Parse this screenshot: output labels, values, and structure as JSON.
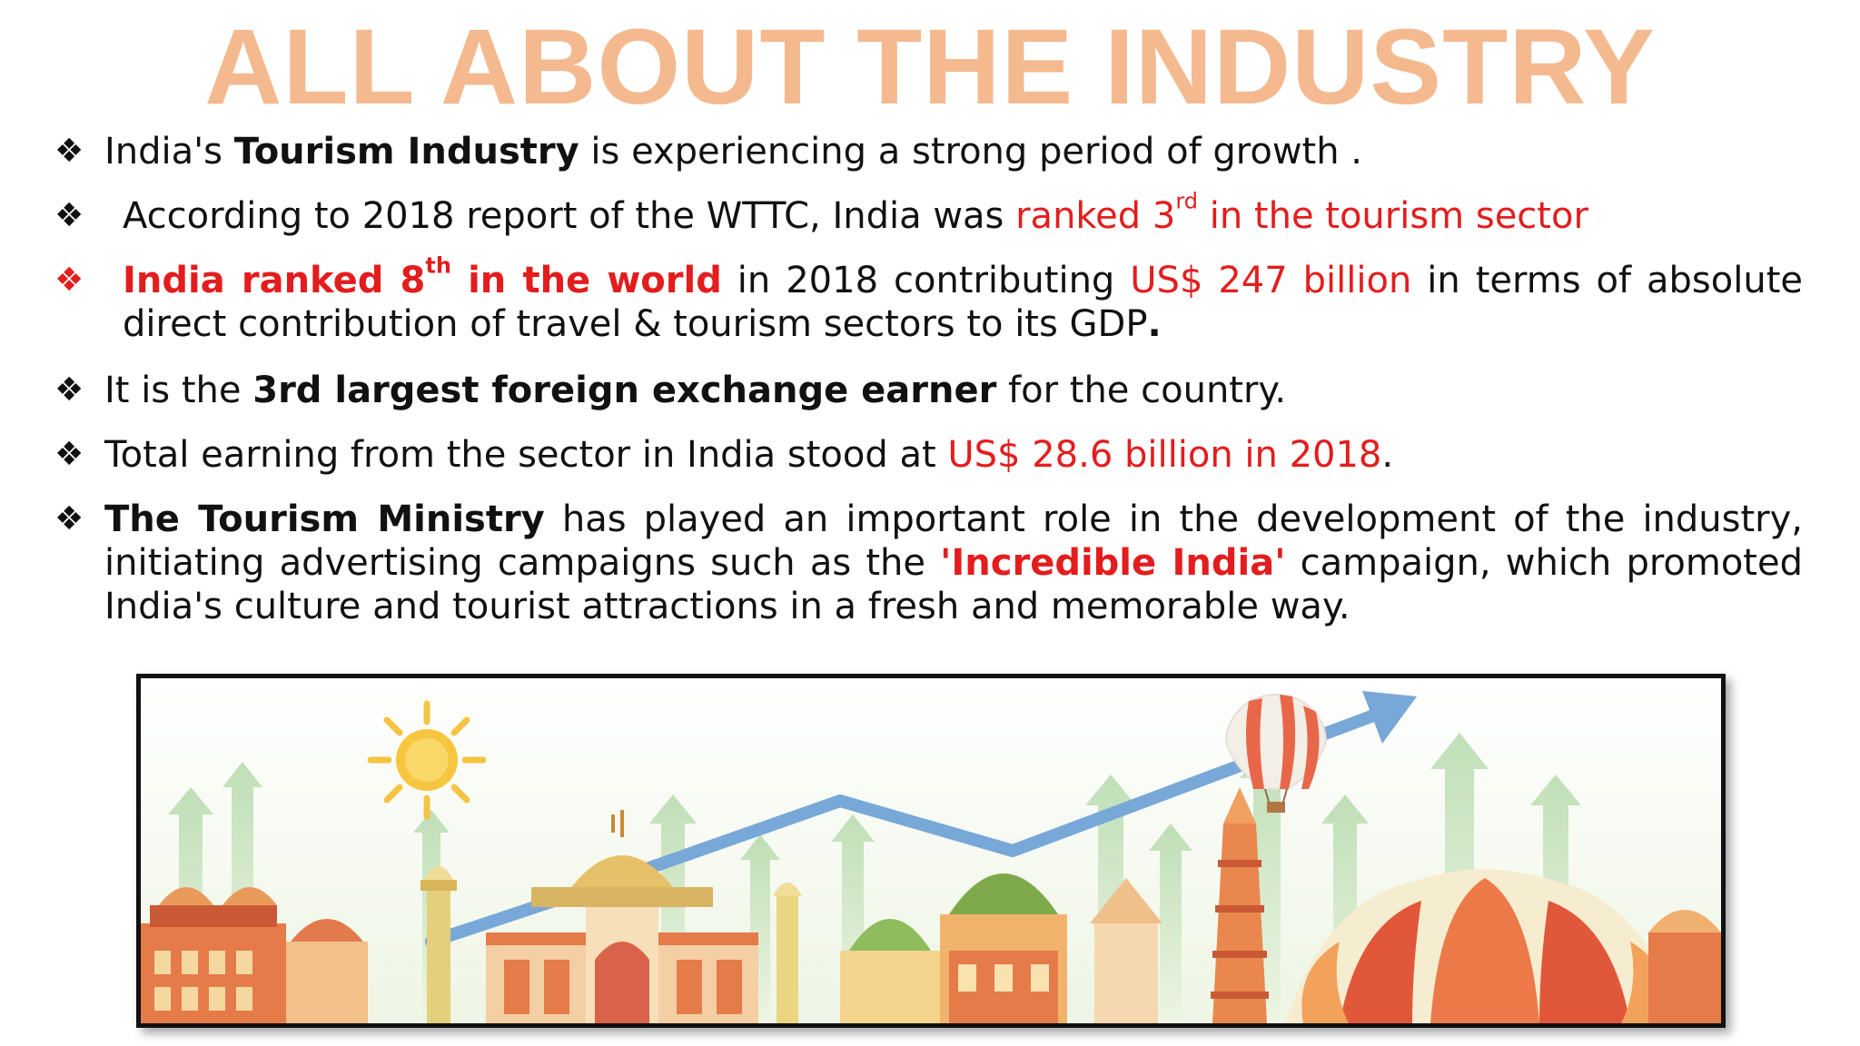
{
  "title": "ALL ABOUT THE INDUSTRY",
  "bullet_icon": "diamond-four-bullet",
  "colors": {
    "title": "#f4b98f",
    "highlight": "#e31d1d",
    "text": "#111111"
  },
  "bullets": [
    {
      "parts": [
        "India's ",
        "Tourism Industry",
        " is experiencing a strong period of growth ."
      ]
    },
    {
      "parts": [
        "According to 2018 report of the WTTC, India was ",
        "ranked 3",
        "rd",
        " in the tourism sector"
      ]
    },
    {
      "parts": [
        "India ranked 8",
        "th",
        " in the world",
        " in 2018 contributing ",
        "US$ 247 billion",
        " in terms of absolute direct contribution of travel & tourism sectors to its GDP",
        "."
      ]
    },
    {
      "parts": [
        "It is the ",
        "3rd largest foreign exchange earner",
        " for the country."
      ]
    },
    {
      "parts": [
        "Total earning from the sector in India stood at ",
        "US$ 28.6 billion in 2018",
        "."
      ]
    },
    {
      "parts": [
        "The Tourism Ministry",
        " has played an important role in the development of the industry, initiating advertising campaigns such as the ",
        "'Incredible India'",
        " campaign, which promoted India's culture and tourist attractions in a fresh and memorable way."
      ]
    }
  ]
}
